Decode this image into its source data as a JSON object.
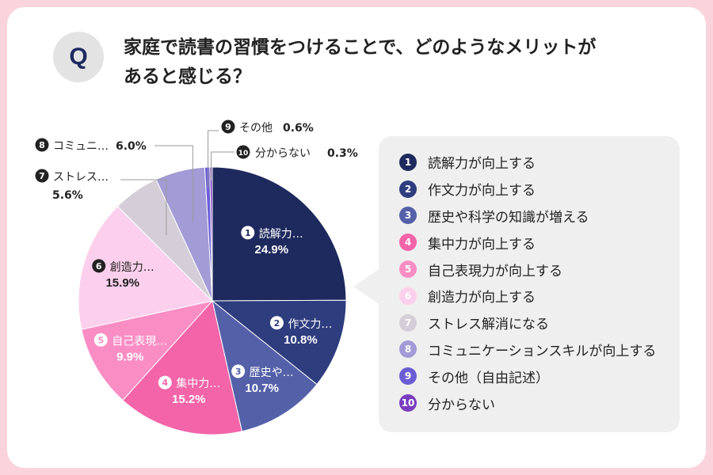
{
  "question": {
    "badge": "Q",
    "line1": "家庭で読書の習慣をつけることで、どのようなメリットが",
    "line2": "あると感じる？"
  },
  "chart_data": {
    "type": "pie",
    "start": "top, clockwise",
    "slices": [
      {
        "num": "1",
        "label": "読解力が向上する",
        "short": "読解力…",
        "value": 24.9,
        "color": "#1e2a5e",
        "label_color": "#ffffff"
      },
      {
        "num": "2",
        "label": "作文力が向上する",
        "short": "作文力…",
        "value": 10.8,
        "color": "#2e3d7e",
        "label_color": "#ffffff"
      },
      {
        "num": "3",
        "label": "歴史や科学の知識が増える",
        "short": "歴史や…",
        "value": 10.7,
        "color": "#5461a9",
        "label_color": "#ffffff"
      },
      {
        "num": "4",
        "label": "集中力が向上する",
        "short": "集中力…",
        "value": 15.2,
        "color": "#f364a8",
        "label_color": "#ffffff"
      },
      {
        "num": "5",
        "label": "自己表現力が向上する",
        "short": "自己表現…",
        "value": 9.9,
        "color": "#fa8dc4",
        "label_color": "#ffffff"
      },
      {
        "num": "6",
        "label": "創造力が向上する",
        "short": "創造力…",
        "value": 15.9,
        "color": "#fcd0ec",
        "label_color": "#222222"
      },
      {
        "num": "7",
        "label": "ストレス解消になる",
        "short": "ストレス…",
        "value": 5.6,
        "color": "#d3ced8",
        "label_color": "#222222"
      },
      {
        "num": "8",
        "label": "コミュニケーションスキルが向上する",
        "short": "コミュニ…",
        "value": 6.0,
        "color": "#a29bd6",
        "label_color": "#222222"
      },
      {
        "num": "9",
        "label": "その他（自由記述）",
        "short": "その他",
        "value": 0.6,
        "color": "#6b5ed4",
        "label_color": "#222222"
      },
      {
        "num": "10",
        "label": "分からない",
        "short": "分からない",
        "value": 0.3,
        "color": "#7a3dbf",
        "label_color": "#222222"
      }
    ]
  }
}
